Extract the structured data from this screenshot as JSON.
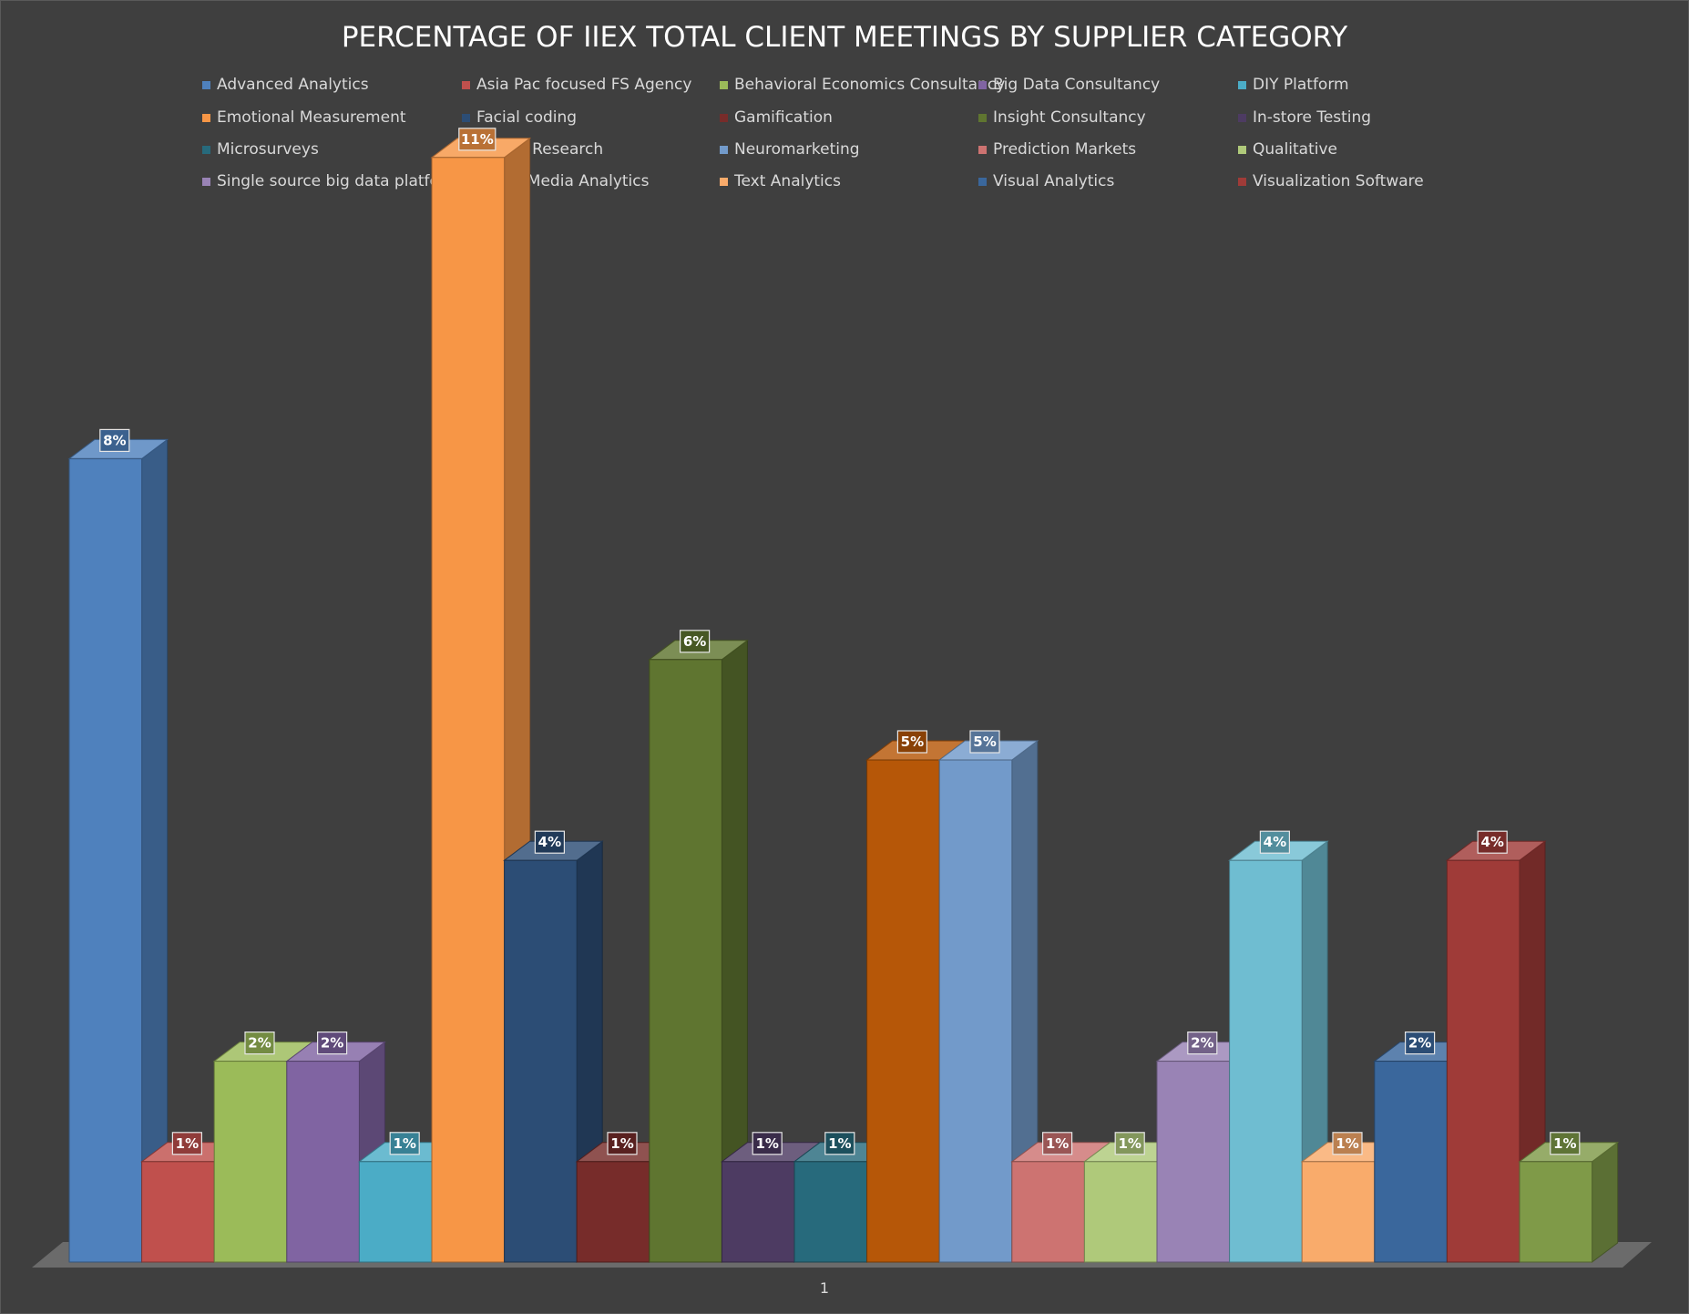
{
  "chart_data": {
    "type": "bar",
    "variant": "3d-clustered-column",
    "title": "PERCENTAGE OF IIEX TOTAL CLIENT MEETINGS BY SUPPLIER CATEGORY",
    "categories": [
      "1"
    ],
    "xlabel": "",
    "ylabel": "",
    "ylim": [
      0,
      12
    ],
    "grid": false,
    "legend_position": "top",
    "series": [
      {
        "name": "Advanced Analytics",
        "value": 8,
        "label": "8%",
        "color": "#4f81bd"
      },
      {
        "name": "Asia Pac focused FS Agency",
        "value": 1,
        "label": "1%",
        "color": "#c0504d"
      },
      {
        "name": "Behavioral Economics Consultancy",
        "value": 2,
        "label": "2%",
        "color": "#9bbb59"
      },
      {
        "name": "Big Data Consultancy",
        "value": 2,
        "label": "2%",
        "color": "#8064a2"
      },
      {
        "name": "DIY Platform",
        "value": 1,
        "label": "1%",
        "color": "#4bacc6"
      },
      {
        "name": "Emotional Measurement",
        "value": 11,
        "label": "11%",
        "color": "#f79646"
      },
      {
        "name": "Facial coding",
        "value": 4,
        "label": "4%",
        "color": "#2c4d75"
      },
      {
        "name": "Gamification",
        "value": 1,
        "label": "1%",
        "color": "#772c2a"
      },
      {
        "name": "Insight Consultancy",
        "value": 6,
        "label": "6%",
        "color": "#5f7530"
      },
      {
        "name": "In-store Testing",
        "value": 1,
        "label": "1%",
        "color": "#4d3b62"
      },
      {
        "name": "Microsurveys",
        "value": 1,
        "label": "1%",
        "color": "#276a7c"
      },
      {
        "name": "Mobile Research",
        "value": 5,
        "label": "5%",
        "color": "#b65708"
      },
      {
        "name": "Neuromarketing",
        "value": 5,
        "label": "5%",
        "color": "#729aca"
      },
      {
        "name": "Prediction Markets",
        "value": 1,
        "label": "1%",
        "color": "#cd7371"
      },
      {
        "name": "Qualitative",
        "value": 1,
        "label": "1%",
        "color": "#afc97a"
      },
      {
        "name": "Single source big data platform",
        "value": 2,
        "label": "2%",
        "color": "#9983b5"
      },
      {
        "name": "Social Media Analytics",
        "value": 4,
        "label": "4%",
        "color": "#6fbdd1"
      },
      {
        "name": "Text Analytics",
        "value": 1,
        "label": "1%",
        "color": "#f9ab6b"
      },
      {
        "name": "Visual Analytics",
        "value": 2,
        "label": "2%",
        "color": "#3a679c"
      },
      {
        "name": "Visualization Software",
        "value": 4,
        "label": "4%",
        "color": "#9f3b38"
      },
      {
        "name": "",
        "value": 1,
        "label": "1%",
        "color": "#7f9a48"
      }
    ]
  }
}
